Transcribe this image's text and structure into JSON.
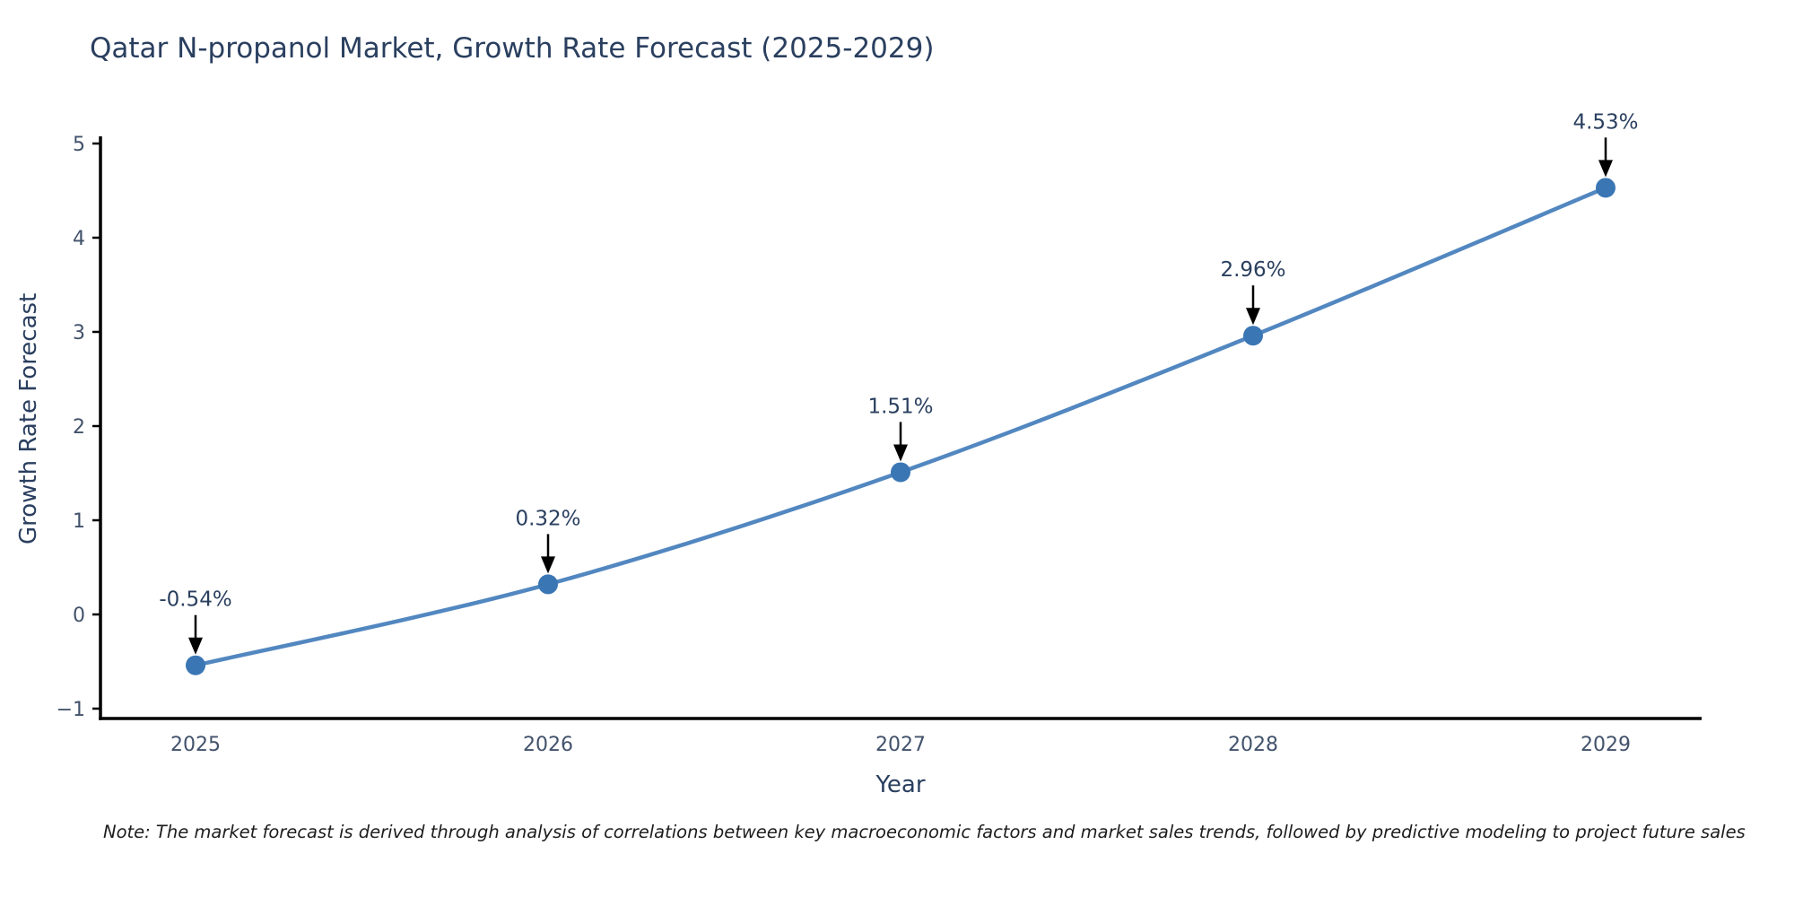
{
  "title": "Qatar N-propanol Market, Growth Rate Forecast (2025-2029)",
  "footnote": "Note: The market forecast is derived through analysis of correlations between key macroeconomic factors and market sales trends, followed by predictive modeling to project future sales",
  "chart_data": {
    "type": "line",
    "title": "Qatar N-propanol Market, Growth Rate Forecast (2025-2029)",
    "xlabel": "Year",
    "ylabel": "Growth Rate Forecast",
    "x": [
      2025,
      2026,
      2027,
      2028,
      2029
    ],
    "values": [
      -0.54,
      0.32,
      1.51,
      2.96,
      4.53
    ],
    "point_labels": [
      "-0.54%",
      "0.32%",
      "1.51%",
      "2.96%",
      "4.53%"
    ],
    "xtick_labels": [
      "2025",
      "2026",
      "2027",
      "2028",
      "2029"
    ],
    "ytick_values": [
      -1,
      0,
      1,
      2,
      3,
      4,
      5
    ],
    "ytick_labels": [
      "−1",
      "0",
      "1",
      "2",
      "3",
      "4",
      "5"
    ],
    "ylim": [
      -1,
      5
    ],
    "grid": false,
    "legend": false,
    "colors": {
      "line": "#5287c0",
      "marker": "#3a76b4",
      "axis": "#000000",
      "tick_text": "#42526b",
      "annotation_text": "#2a3f5f",
      "annotation_arrow": "#000000",
      "title_text": "#2a3f5f"
    }
  }
}
